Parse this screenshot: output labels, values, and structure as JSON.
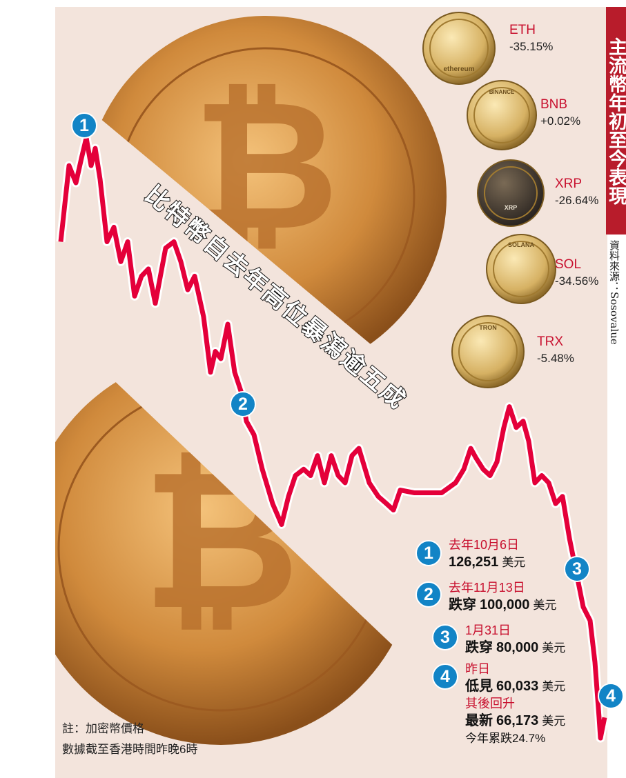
{
  "title": "主流幣年初至今表現",
  "source": "資料來源：Sosovalue",
  "headline": "比特幣自去年高位暴瀉逾五成",
  "coins": [
    {
      "name": "ETH",
      "change": "-35.15%",
      "coin_text": "ethereum"
    },
    {
      "name": "BNB",
      "change": "+0.02%",
      "coin_text": "BINANCE"
    },
    {
      "name": "XRP",
      "change": "-26.64%",
      "coin_text": "XRP"
    },
    {
      "name": "SOL",
      "change": "-34.56%",
      "coin_text": "SOLANA"
    },
    {
      "name": "TRX",
      "change": "-5.48%",
      "coin_text": "TRON"
    }
  ],
  "events": [
    {
      "num": "1",
      "date": "去年10月6日",
      "prefix": "",
      "value": "126,251",
      "unit": "美元"
    },
    {
      "num": "2",
      "date": "去年11月13日",
      "prefix": "跌穿",
      "value": "100,000",
      "unit": "美元"
    },
    {
      "num": "3",
      "date": "1月31日",
      "prefix": "跌穿",
      "value": "80,000",
      "unit": "美元"
    },
    {
      "num": "4",
      "date": "昨日",
      "prefix": "低見",
      "value": "60,033",
      "unit": "美元"
    }
  ],
  "rebound": {
    "label": "其後回升",
    "prefix": "最新",
    "value": "66,173",
    "unit": "美元",
    "ytd": "今年累跌24.7%"
  },
  "note": {
    "line1": "註：加密幣價格",
    "line2": "數據截至香港時間昨晚6時"
  },
  "colors": {
    "line": "#e4003a",
    "marker": "#1284c6",
    "title_bg": "#b81c2b",
    "background": "#f3e4dc"
  },
  "chart_data": {
    "type": "line",
    "series": [
      {
        "values": [
          114800,
          123200,
          121300,
          124000,
          126251,
          123200,
          125100,
          121700,
          114800,
          116400,
          112600,
          114800,
          108800,
          111000,
          111800,
          108000,
          114100,
          114800,
          112600,
          109500,
          111000,
          106500,
          100400,
          102700,
          101900,
          105700,
          100400,
          98100,
          95000,
          93500,
          89700,
          85900,
          83600,
          86700,
          89000,
          89700,
          89000,
          91200,
          88200,
          91200,
          89000,
          88200,
          91200,
          92000,
          88200,
          86700,
          85900,
          85200,
          87400,
          87100,
          87100,
          88200,
          89700,
          92000,
          90900,
          89700,
          89000,
          90500,
          94300,
          96600,
          94300,
          95000,
          92800,
          88200,
          89000,
          88200,
          85900,
          86700,
          82100,
          78300,
          74500,
          73000,
          68400,
          62300,
          60033,
          62300
        ]
      }
    ],
    "markers": [
      {
        "label": "1",
        "value": 126251
      },
      {
        "label": "2",
        "value": 100000
      },
      {
        "label": "3",
        "value": 80000
      },
      {
        "label": "4",
        "value": 60033
      }
    ],
    "xlabel": "",
    "ylabel": "",
    "grid": false
  }
}
